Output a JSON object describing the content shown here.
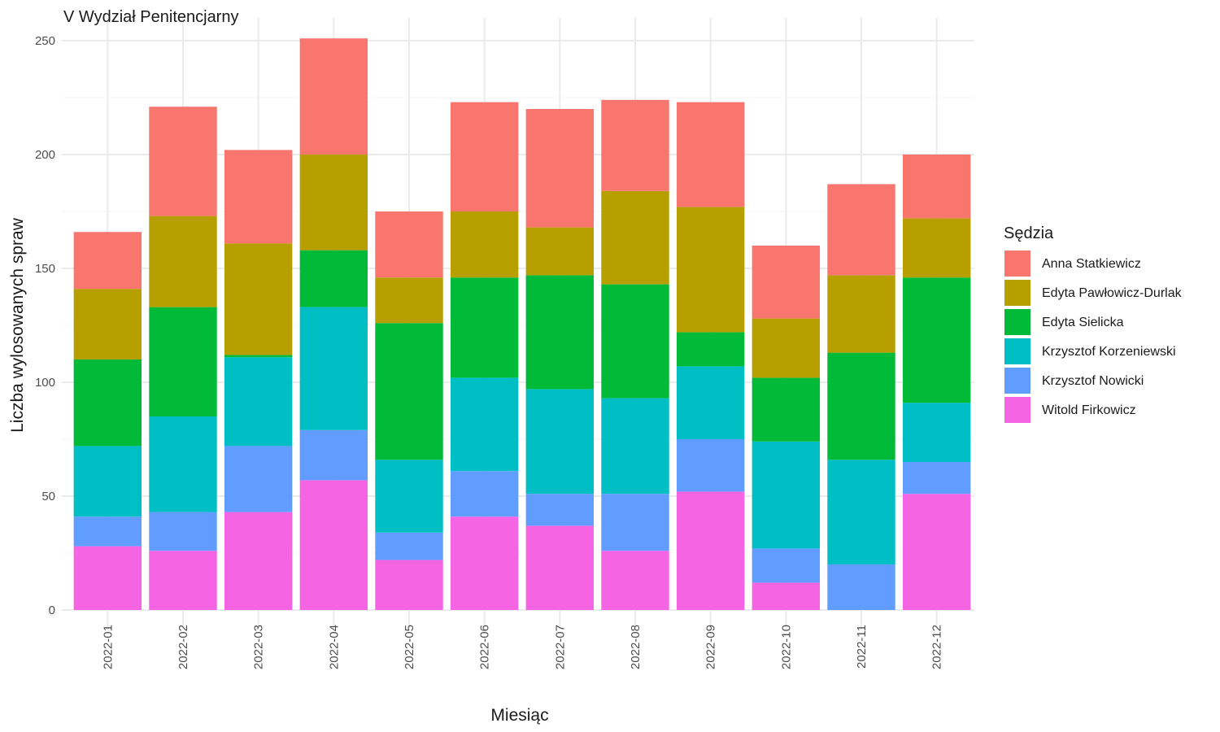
{
  "chart_data": {
    "type": "bar",
    "stacked": true,
    "title": "V Wydział Penitencjarny",
    "xlabel": "Miesiąc",
    "ylabel": "Liczba wylosowanych spraw",
    "ylim": [
      0,
      260
    ],
    "yticks": [
      0,
      50,
      100,
      150,
      200,
      250
    ],
    "grid": true,
    "legend_title": "Sędzia",
    "legend_position": "right",
    "categories": [
      "2022-01",
      "2022-02",
      "2022-03",
      "2022-04",
      "2022-05",
      "2022-06",
      "2022-07",
      "2022-08",
      "2022-09",
      "2022-10",
      "2022-11",
      "2022-12"
    ],
    "series": [
      {
        "name": "Witold Firkowicz",
        "color": "#F564E3",
        "values": [
          28,
          26,
          43,
          57,
          22,
          41,
          37,
          26,
          52,
          12,
          0,
          51
        ]
      },
      {
        "name": "Krzysztof Nowicki",
        "color": "#619CFF",
        "values": [
          13,
          17,
          29,
          22,
          12,
          20,
          14,
          25,
          23,
          15,
          20,
          14
        ]
      },
      {
        "name": "Krzysztof Korzeniewski",
        "color": "#00BFC4",
        "values": [
          31,
          42,
          39,
          54,
          32,
          41,
          46,
          42,
          32,
          47,
          46,
          26
        ]
      },
      {
        "name": "Edyta Sielicka",
        "color": "#00BA38",
        "values": [
          38,
          48,
          1,
          25,
          60,
          44,
          50,
          50,
          15,
          28,
          47,
          55
        ]
      },
      {
        "name": "Edyta Pawłowicz-Durlak",
        "color": "#B79F00",
        "values": [
          31,
          40,
          49,
          42,
          20,
          29,
          21,
          41,
          55,
          26,
          34,
          26
        ]
      },
      {
        "name": "Anna Statkiewicz",
        "color": "#F8766D",
        "values": [
          25,
          48,
          41,
          51,
          29,
          48,
          52,
          40,
          46,
          32,
          40,
          28
        ]
      }
    ],
    "legend_order": [
      "Anna Statkiewicz",
      "Edyta Pawłowicz-Durlak",
      "Edyta Sielicka",
      "Krzysztof Korzeniewski",
      "Krzysztof Nowicki",
      "Witold Firkowicz"
    ]
  }
}
